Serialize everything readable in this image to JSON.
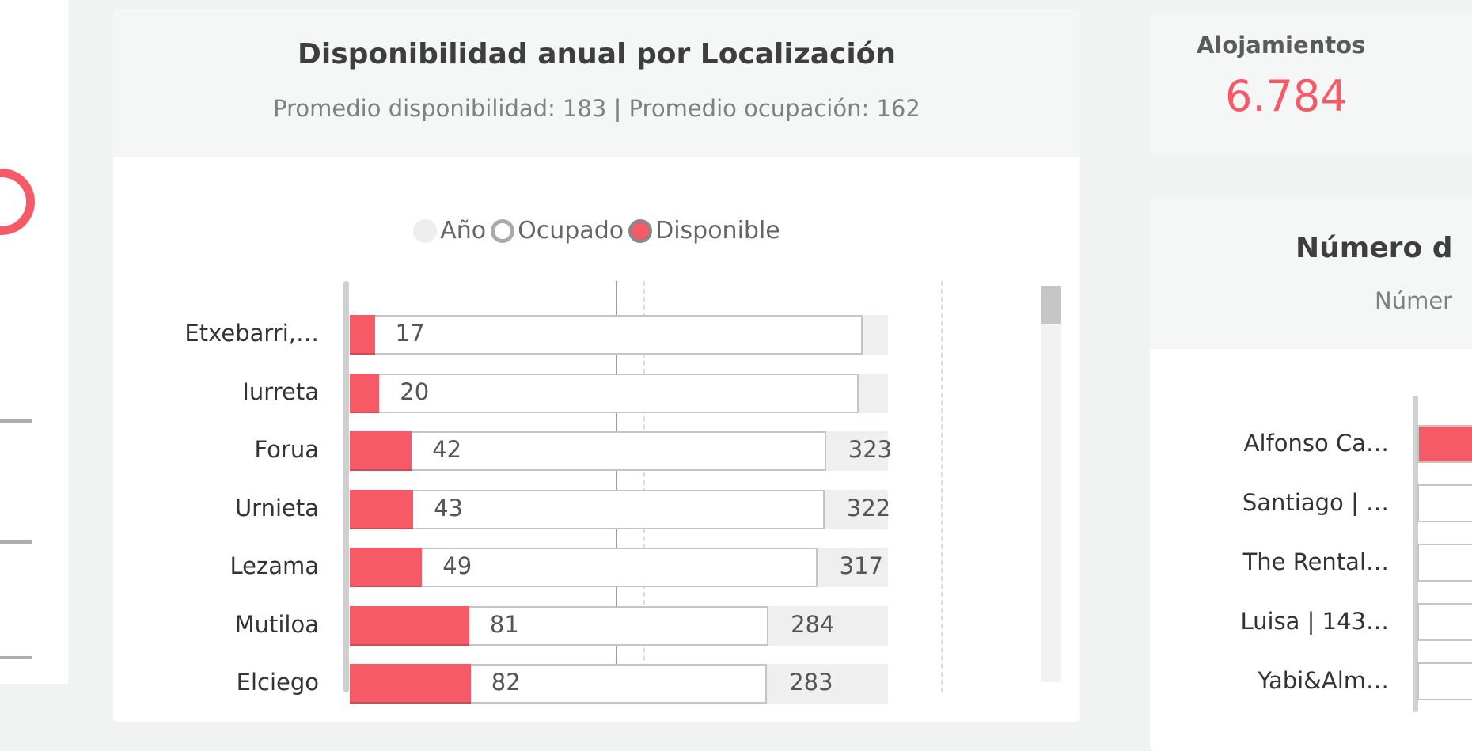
{
  "main_card": {
    "title": "Disponibilidad anual por Localización",
    "subtitle": "Promedio disponibilidad: 183 | Promedio ocupación: 162",
    "legend": [
      {
        "label": "Año",
        "color": "#eeeeee"
      },
      {
        "label": "Ocupado",
        "color": "#ffffff"
      },
      {
        "label": "Disponible",
        "color": "#f65a66"
      }
    ]
  },
  "chart_data": {
    "type": "bar",
    "orientation": "horizontal",
    "stacked": false,
    "xlim": [
      0,
      365
    ],
    "categories": [
      "Etxebarri,…",
      "Iurreta",
      "Forua",
      "Urnieta",
      "Lezama",
      "Mutiloa",
      "Elciego"
    ],
    "series": [
      {
        "name": "Año",
        "values": [
          365,
          365,
          365,
          365,
          365,
          365,
          365
        ],
        "color": "#efefef"
      },
      {
        "name": "Ocupado",
        "values": [
          348,
          345,
          323,
          322,
          317,
          284,
          283
        ],
        "labels": [
          "",
          "",
          "323",
          "322",
          "317",
          "284",
          "283"
        ],
        "color": "#ffffff"
      },
      {
        "name": "Disponible",
        "values": [
          17,
          20,
          42,
          43,
          49,
          81,
          82
        ],
        "labels": [
          "17",
          "20",
          "42",
          "43",
          "49",
          "81",
          "82"
        ],
        "color": "#f65a66"
      }
    ]
  },
  "kpi": {
    "label": "Alojamientos",
    "value": "6.784",
    "color": "#f65a66"
  },
  "right_card": {
    "title": "Número d",
    "subtitle": "Númer",
    "rows": [
      "Alfonso Ca…",
      "Santiago | …",
      "The Rental…",
      "Luisa | 143…",
      "Yabi&Alm…"
    ]
  }
}
